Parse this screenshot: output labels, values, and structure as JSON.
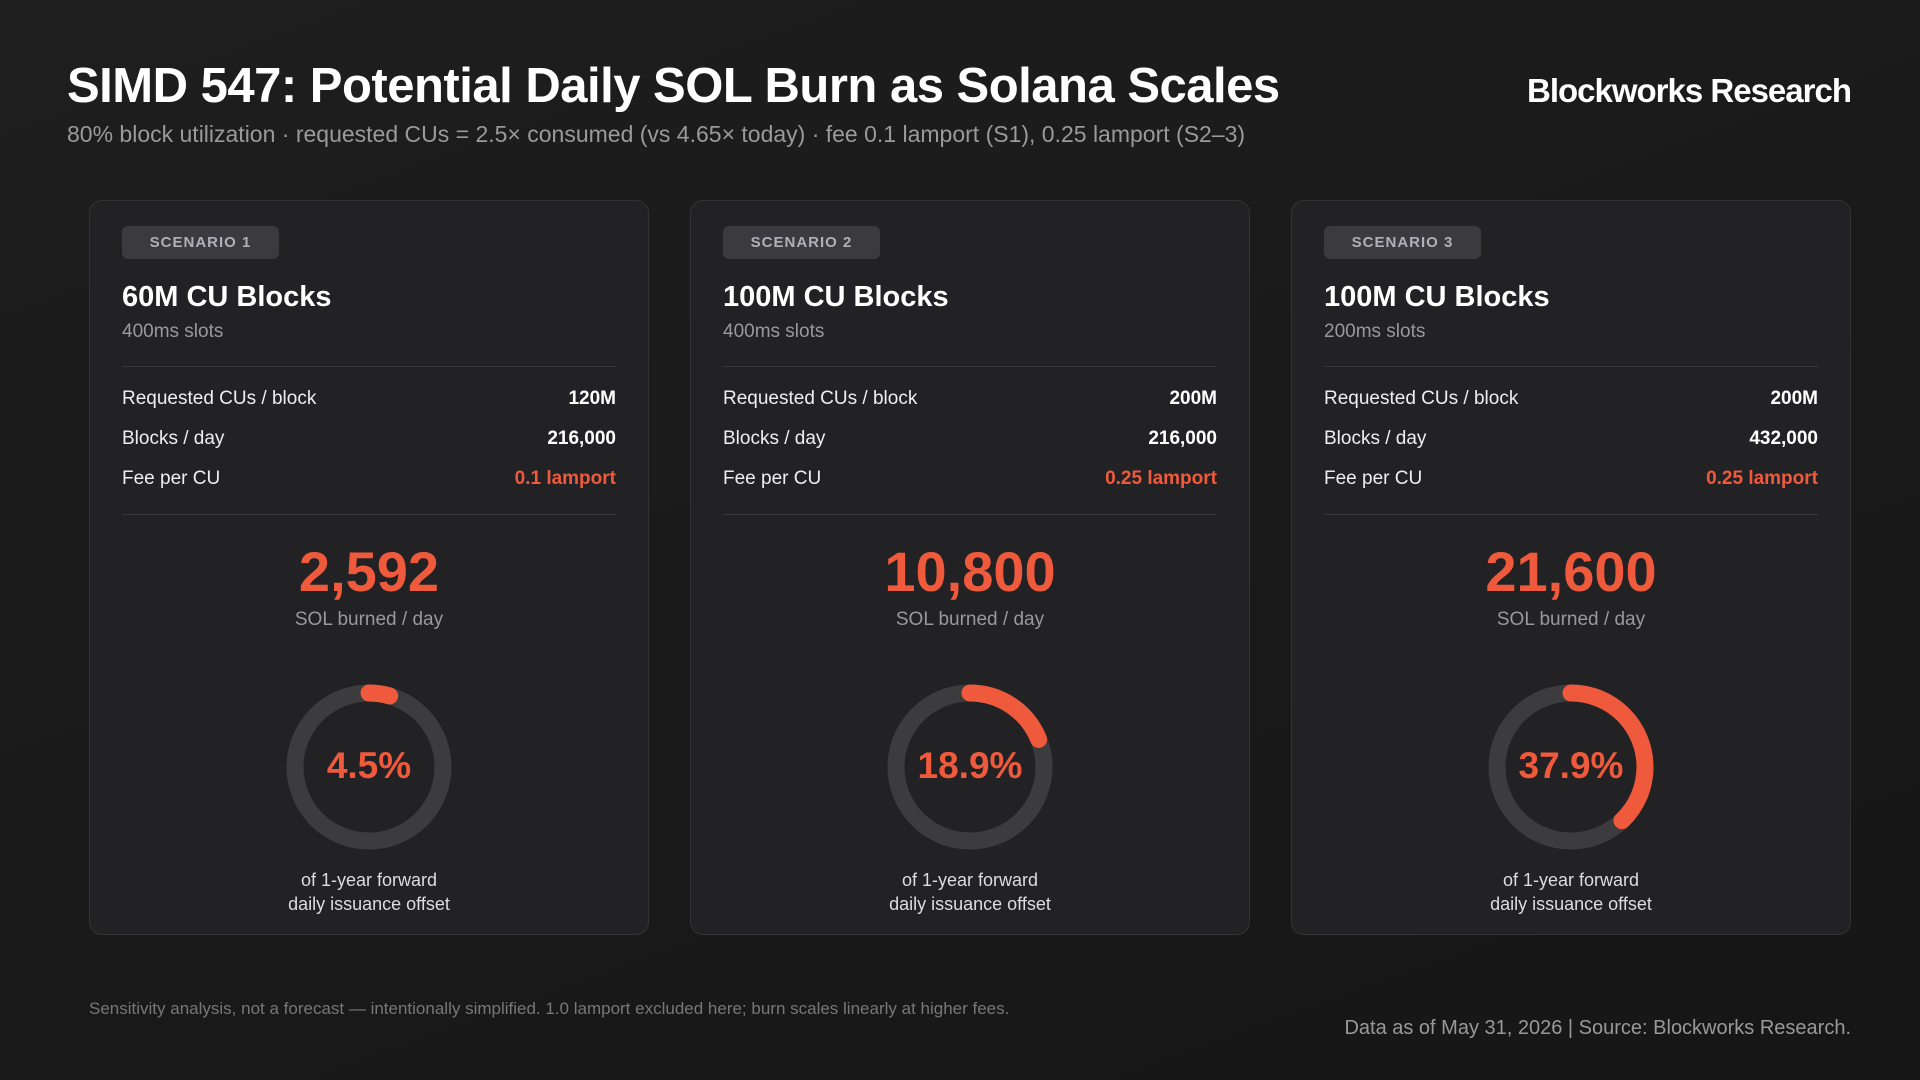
{
  "header": {
    "title": "SIMD 547: Potential Daily SOL Burn as Solana Scales",
    "subtitle": "80% block utilization · requested CUs = 2.5× consumed (vs 4.65× today) · fee 0.1 lamport (S1), 0.25 lamport (S2–3)",
    "brand": "Blockworks Research"
  },
  "cards": [
    {
      "badge": "SCENARIO 1",
      "title": "60M CU Blocks",
      "subtitle": "400ms slots",
      "rows": [
        {
          "label": "Requested CUs / block",
          "value": "120M"
        },
        {
          "label": "Blocks / day",
          "value": "216,000"
        },
        {
          "label": "Fee per CU",
          "value": "0.1 lamport",
          "highlight": true
        }
      ],
      "burn": "2,592",
      "burn_label": "SOL burned / day",
      "gauge": {
        "value": 4.5,
        "label": "4.5%"
      },
      "caption": [
        "of 1-year forward",
        "daily issuance offset"
      ]
    },
    {
      "badge": "SCENARIO 2",
      "title": "100M CU Blocks",
      "subtitle": "400ms slots",
      "rows": [
        {
          "label": "Requested CUs / block",
          "value": "200M"
        },
        {
          "label": "Blocks / day",
          "value": "216,000"
        },
        {
          "label": "Fee per CU",
          "value": "0.25 lamport",
          "highlight": true
        }
      ],
      "burn": "10,800",
      "burn_label": "SOL burned / day",
      "gauge": {
        "value": 18.9,
        "label": "18.9%"
      },
      "caption": [
        "of 1-year forward",
        "daily issuance offset"
      ]
    },
    {
      "badge": "SCENARIO 3",
      "title": "100M CU Blocks",
      "subtitle": "200ms slots",
      "rows": [
        {
          "label": "Requested CUs / block",
          "value": "200M"
        },
        {
          "label": "Blocks / day",
          "value": "432,000"
        },
        {
          "label": "Fee per CU",
          "value": "0.25 lamport",
          "highlight": true
        }
      ],
      "burn": "21,600",
      "burn_label": "SOL burned / day",
      "gauge": {
        "value": 37.9,
        "label": "37.9%"
      },
      "caption": [
        "of 1-year forward",
        "daily issuance offset"
      ]
    }
  ],
  "footer": {
    "note": "Sensitivity analysis, not a forecast — intentionally simplified. 1.0 lamport excluded here; burn scales linearly at higher fees.",
    "source": "Data as of May 31, 2026 | Source: Blockworks Research."
  }
}
